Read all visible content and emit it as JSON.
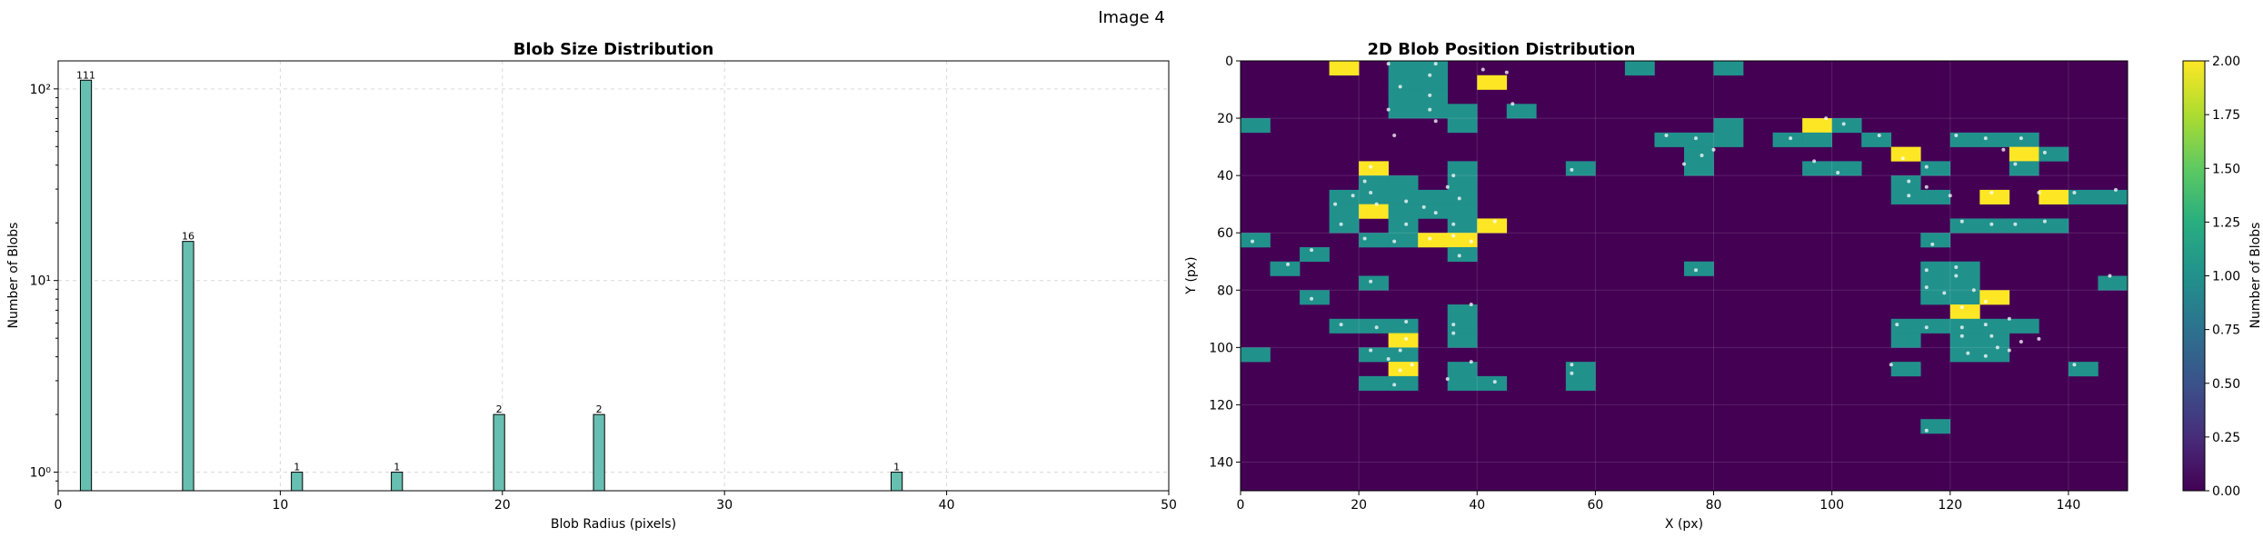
{
  "figure": {
    "suptitle": "Image 4"
  },
  "chart_data": [
    {
      "type": "bar",
      "title": "Blob Size Distribution",
      "xlabel": "Blob Radius (pixels)",
      "ylabel": "Number of Blobs",
      "yscale": "log",
      "xlim": [
        0,
        50
      ],
      "ylim": [
        0.8,
        140
      ],
      "xticks": [
        0,
        10,
        20,
        30,
        40,
        50
      ],
      "yticks": [
        {
          "value": 1,
          "label": "10⁰"
        },
        {
          "value": 10,
          "label": "10¹"
        },
        {
          "value": 100,
          "label": "10²"
        }
      ],
      "grid": true,
      "bar_color": "#66bfb0",
      "bars": [
        {
          "x": 1.25,
          "value": 111,
          "label": "111"
        },
        {
          "x": 5.85,
          "value": 16,
          "label": "16"
        },
        {
          "x": 10.75,
          "value": 1,
          "label": "1"
        },
        {
          "x": 15.25,
          "value": 1,
          "label": "1"
        },
        {
          "x": 19.85,
          "value": 2,
          "label": "2"
        },
        {
          "x": 24.35,
          "value": 2,
          "label": "2"
        },
        {
          "x": 37.75,
          "value": 1,
          "label": "1"
        }
      ]
    },
    {
      "type": "heatmap",
      "title": "2D Blob Position Distribution",
      "xlabel": "X (px)",
      "ylabel": "Y (px)",
      "xlim": [
        0,
        150
      ],
      "ylim": [
        150,
        0
      ],
      "xticks": [
        0,
        20,
        40,
        60,
        80,
        100,
        120,
        140
      ],
      "yticks": [
        0,
        20,
        40,
        60,
        80,
        100,
        120,
        140
      ],
      "colormap": "viridis",
      "colors": {
        "0": "#440154",
        "1": "#21918c",
        "2": "#fde725"
      },
      "cell_size": 5,
      "colorbar": {
        "label": "Number of Blobs",
        "range": [
          0,
          2
        ],
        "ticks": [
          "0.00",
          "0.25",
          "0.50",
          "0.75",
          "1.00",
          "1.25",
          "1.50",
          "1.75",
          "2.00"
        ]
      },
      "cells": [
        [
          15,
          0,
          2
        ],
        [
          25,
          0,
          1
        ],
        [
          30,
          0,
          1
        ],
        [
          65,
          0,
          1
        ],
        [
          80,
          0,
          1
        ],
        [
          25,
          5,
          1
        ],
        [
          30,
          5,
          1
        ],
        [
          40,
          5,
          2
        ],
        [
          25,
          10,
          1
        ],
        [
          30,
          10,
          1
        ],
        [
          25,
          15,
          1
        ],
        [
          30,
          15,
          1
        ],
        [
          35,
          15,
          1
        ],
        [
          45,
          15,
          1
        ],
        [
          0,
          20,
          1
        ],
        [
          35,
          20,
          1
        ],
        [
          80,
          20,
          1
        ],
        [
          95,
          20,
          2
        ],
        [
          100,
          20,
          1
        ],
        [
          70,
          25,
          1
        ],
        [
          75,
          25,
          1
        ],
        [
          80,
          25,
          1
        ],
        [
          90,
          25,
          1
        ],
        [
          95,
          25,
          1
        ],
        [
          105,
          25,
          1
        ],
        [
          120,
          25,
          1
        ],
        [
          125,
          25,
          1
        ],
        [
          130,
          25,
          1
        ],
        [
          75,
          30,
          1
        ],
        [
          110,
          30,
          2
        ],
        [
          130,
          30,
          2
        ],
        [
          135,
          30,
          1
        ],
        [
          20,
          35,
          2
        ],
        [
          35,
          35,
          1
        ],
        [
          55,
          35,
          1
        ],
        [
          75,
          35,
          1
        ],
        [
          95,
          35,
          1
        ],
        [
          100,
          35,
          1
        ],
        [
          115,
          35,
          1
        ],
        [
          130,
          35,
          1
        ],
        [
          20,
          40,
          1
        ],
        [
          25,
          40,
          1
        ],
        [
          35,
          40,
          1
        ],
        [
          110,
          40,
          1
        ],
        [
          15,
          45,
          1
        ],
        [
          20,
          45,
          1
        ],
        [
          25,
          45,
          1
        ],
        [
          30,
          45,
          1
        ],
        [
          35,
          45,
          1
        ],
        [
          110,
          45,
          1
        ],
        [
          115,
          45,
          1
        ],
        [
          125,
          45,
          2
        ],
        [
          135,
          45,
          2
        ],
        [
          140,
          45,
          1
        ],
        [
          145,
          45,
          1
        ],
        [
          15,
          50,
          1
        ],
        [
          20,
          50,
          2
        ],
        [
          25,
          50,
          1
        ],
        [
          30,
          50,
          1
        ],
        [
          35,
          50,
          1
        ],
        [
          15,
          55,
          1
        ],
        [
          25,
          55,
          1
        ],
        [
          35,
          55,
          1
        ],
        [
          40,
          55,
          2
        ],
        [
          120,
          55,
          1
        ],
        [
          125,
          55,
          1
        ],
        [
          130,
          55,
          1
        ],
        [
          135,
          55,
          1
        ],
        [
          0,
          60,
          1
        ],
        [
          20,
          60,
          1
        ],
        [
          25,
          60,
          1
        ],
        [
          30,
          60,
          2
        ],
        [
          35,
          60,
          2
        ],
        [
          115,
          60,
          1
        ],
        [
          10,
          65,
          1
        ],
        [
          35,
          65,
          1
        ],
        [
          5,
          70,
          1
        ],
        [
          75,
          70,
          1
        ],
        [
          115,
          70,
          1
        ],
        [
          120,
          70,
          1
        ],
        [
          20,
          75,
          1
        ],
        [
          115,
          75,
          1
        ],
        [
          120,
          75,
          1
        ],
        [
          145,
          75,
          1
        ],
        [
          10,
          80,
          1
        ],
        [
          115,
          80,
          1
        ],
        [
          120,
          80,
          1
        ],
        [
          125,
          80,
          2
        ],
        [
          35,
          85,
          1
        ],
        [
          120,
          85,
          2
        ],
        [
          15,
          90,
          1
        ],
        [
          20,
          90,
          1
        ],
        [
          25,
          90,
          1
        ],
        [
          35,
          90,
          1
        ],
        [
          110,
          90,
          1
        ],
        [
          115,
          90,
          1
        ],
        [
          120,
          90,
          1
        ],
        [
          125,
          90,
          1
        ],
        [
          130,
          90,
          1
        ],
        [
          25,
          95,
          2
        ],
        [
          35,
          95,
          1
        ],
        [
          110,
          95,
          1
        ],
        [
          120,
          95,
          1
        ],
        [
          125,
          95,
          1
        ],
        [
          0,
          100,
          1
        ],
        [
          20,
          100,
          1
        ],
        [
          25,
          100,
          1
        ],
        [
          120,
          100,
          1
        ],
        [
          125,
          100,
          1
        ],
        [
          25,
          105,
          2
        ],
        [
          35,
          105,
          1
        ],
        [
          55,
          105,
          1
        ],
        [
          110,
          105,
          1
        ],
        [
          140,
          105,
          1
        ],
        [
          20,
          110,
          1
        ],
        [
          25,
          110,
          1
        ],
        [
          35,
          110,
          1
        ],
        [
          40,
          110,
          1
        ],
        [
          55,
          110,
          1
        ],
        [
          115,
          125,
          1
        ]
      ],
      "points": [
        [
          25,
          1
        ],
        [
          33,
          1
        ],
        [
          32,
          5
        ],
        [
          41,
          3
        ],
        [
          27,
          9
        ],
        [
          32,
          12
        ],
        [
          45,
          4
        ],
        [
          25,
          17
        ],
        [
          32,
          17
        ],
        [
          46,
          15
        ],
        [
          26,
          26
        ],
        [
          33,
          21
        ],
        [
          99,
          20
        ],
        [
          102,
          22
        ],
        [
          72,
          26
        ],
        [
          77,
          27
        ],
        [
          80,
          31
        ],
        [
          93,
          27
        ],
        [
          108,
          26
        ],
        [
          121,
          26
        ],
        [
          126,
          27
        ],
        [
          132,
          27
        ],
        [
          78,
          33
        ],
        [
          112,
          34
        ],
        [
          129,
          31
        ],
        [
          136,
          32
        ],
        [
          56,
          38
        ],
        [
          75,
          36
        ],
        [
          97,
          35
        ],
        [
          101,
          39
        ],
        [
          116,
          37
        ],
        [
          131,
          36
        ],
        [
          22,
          37
        ],
        [
          21,
          42
        ],
        [
          22,
          46
        ],
        [
          36,
          40
        ],
        [
          35,
          44
        ],
        [
          19,
          47
        ],
        [
          16,
          50
        ],
        [
          23,
          50
        ],
        [
          28,
          49
        ],
        [
          31,
          51
        ],
        [
          33,
          53
        ],
        [
          37,
          48
        ],
        [
          113,
          42
        ],
        [
          116,
          44
        ],
        [
          113,
          47
        ],
        [
          120,
          47
        ],
        [
          127,
          46
        ],
        [
          135,
          46
        ],
        [
          141,
          46
        ],
        [
          148,
          45
        ],
        [
          17,
          57
        ],
        [
          28,
          57
        ],
        [
          36,
          57
        ],
        [
          43,
          56
        ],
        [
          122,
          56
        ],
        [
          127,
          57
        ],
        [
          131,
          57
        ],
        [
          136,
          56
        ],
        [
          2,
          63
        ],
        [
          21,
          62
        ],
        [
          26,
          63
        ],
        [
          32,
          62
        ],
        [
          36,
          61
        ],
        [
          39,
          63
        ],
        [
          117,
          64
        ],
        [
          12,
          66
        ],
        [
          37,
          68
        ],
        [
          8,
          71
        ],
        [
          77,
          73
        ],
        [
          116,
          73
        ],
        [
          121,
          72
        ],
        [
          121,
          75
        ],
        [
          22,
          77
        ],
        [
          147,
          75
        ],
        [
          12,
          83
        ],
        [
          116,
          79
        ],
        [
          119,
          81
        ],
        [
          124,
          80
        ],
        [
          126,
          84
        ],
        [
          39,
          85
        ],
        [
          122,
          86
        ],
        [
          17,
          92
        ],
        [
          23,
          93
        ],
        [
          28,
          91
        ],
        [
          36,
          92
        ],
        [
          36,
          95
        ],
        [
          111,
          92
        ],
        [
          116,
          93
        ],
        [
          122,
          93
        ],
        [
          126,
          92
        ],
        [
          130,
          90
        ],
        [
          132,
          98
        ],
        [
          135,
          97
        ],
        [
          28,
          97
        ],
        [
          122,
          96
        ],
        [
          127,
          96
        ],
        [
          123,
          102
        ],
        [
          126,
          103
        ],
        [
          128,
          100
        ],
        [
          130,
          101
        ],
        [
          27,
          101
        ],
        [
          22,
          101
        ],
        [
          25,
          104
        ],
        [
          27,
          108
        ],
        [
          29,
          106
        ],
        [
          39,
          105
        ],
        [
          56,
          106
        ],
        [
          110,
          106
        ],
        [
          141,
          106
        ],
        [
          26,
          113
        ],
        [
          35,
          111
        ],
        [
          43,
          112
        ],
        [
          56,
          109
        ],
        [
          116,
          129
        ]
      ]
    }
  ]
}
